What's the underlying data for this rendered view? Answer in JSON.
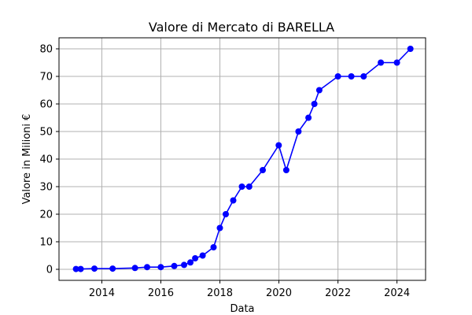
{
  "chart_data": {
    "type": "line",
    "title": "Valore di Mercato di BARELLA",
    "xlabel": "Data",
    "ylabel": "Valore in Milioni €",
    "x": [
      "2013-02-15",
      "2013-04-15",
      "2013-10-01",
      "2014-05-15",
      "2015-02-15",
      "2015-07-15",
      "2016-01-01",
      "2016-06-15",
      "2016-10-15",
      "2017-01-01",
      "2017-03-01",
      "2017-06-01",
      "2017-10-15",
      "2018-01-01",
      "2018-03-15",
      "2018-06-15",
      "2018-09-30",
      "2018-12-30",
      "2019-06-15",
      "2019-12-30",
      "2020-04-01",
      "2020-08-30",
      "2021-01-01",
      "2021-03-15",
      "2021-05-15",
      "2022-01-01",
      "2022-06-15",
      "2022-11-15",
      "2023-06-15",
      "2024-01-01",
      "2024-06-15"
    ],
    "series": [
      {
        "values": [
          0.1,
          0.1,
          0.25,
          0.25,
          0.5,
          0.8,
          0.8,
          1.2,
          1.6,
          2.5,
          4,
          5,
          8,
          15,
          20,
          25,
          30,
          30,
          36,
          45,
          36,
          50,
          55,
          60,
          65,
          70,
          70,
          70,
          75,
          75,
          80
        ]
      }
    ],
    "xlim": [
      "2012-07-20",
      "2024-12-20"
    ],
    "ylim": [
      -4,
      84
    ],
    "x_ticks": [
      "2014",
      "2016",
      "2018",
      "2020",
      "2022",
      "2024"
    ],
    "y_ticks": [
      0,
      10,
      20,
      30,
      40,
      50,
      60,
      70,
      80
    ],
    "grid": true,
    "legend": "none",
    "color": "#0000ff"
  }
}
